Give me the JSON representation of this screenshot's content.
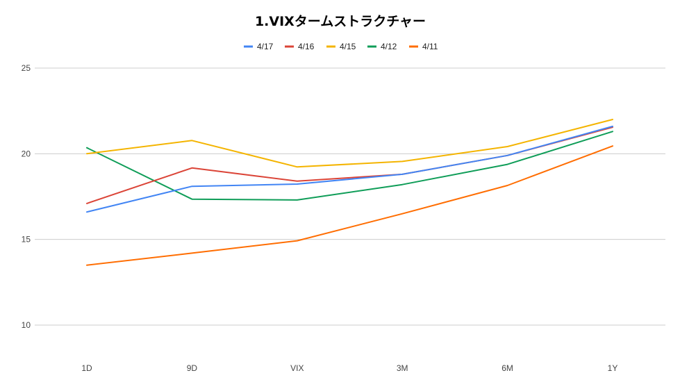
{
  "chart_data": {
    "type": "line",
    "title": "1.VIXタームストラクチャー",
    "categories": [
      "1D",
      "9D",
      "VIX",
      "3M",
      "6M",
      "1Y"
    ],
    "yticks": [
      "10",
      "15",
      "20",
      "25"
    ],
    "ylim": [
      10,
      25
    ],
    "grid": true,
    "legend_position": "top",
    "series": [
      {
        "name": "4/17",
        "color": "#4285f4",
        "values": [
          16.6,
          18.1,
          18.23,
          18.8,
          19.9,
          21.6
        ]
      },
      {
        "name": "4/16",
        "color": "#db4437",
        "values": [
          17.1,
          19.17,
          18.4,
          18.8,
          19.9,
          21.55
        ]
      },
      {
        "name": "4/15",
        "color": "#f4b400",
        "values": [
          20.0,
          20.77,
          19.23,
          19.55,
          20.42,
          22.0
        ]
      },
      {
        "name": "4/12",
        "color": "#0f9d58",
        "values": [
          20.35,
          17.35,
          17.3,
          18.2,
          19.38,
          21.3
        ]
      },
      {
        "name": "4/11",
        "color": "#ff6d01",
        "values": [
          13.5,
          14.2,
          14.92,
          16.5,
          18.15,
          20.45
        ]
      }
    ]
  }
}
